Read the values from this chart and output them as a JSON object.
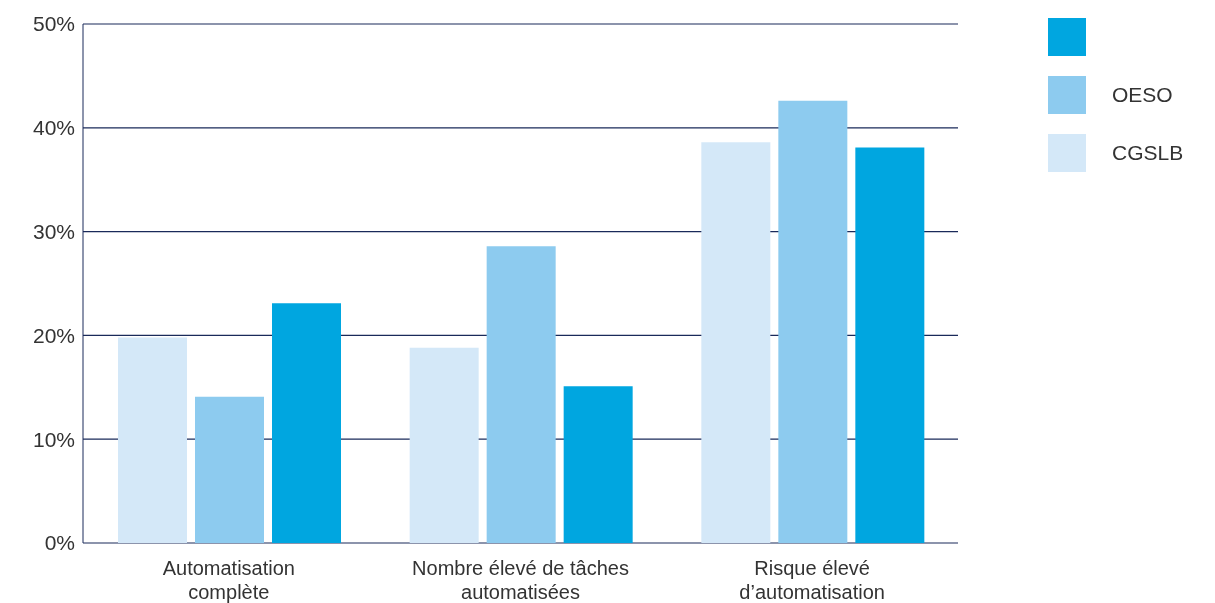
{
  "chart_data": {
    "type": "bar",
    "categories": [
      "Automatisation complète",
      "Nombre élevé de tâches automatisées",
      "Risque élevé d’automatisation"
    ],
    "series": [
      {
        "name": "CGSLB",
        "color": "#d4e8f8",
        "values": [
          19.8,
          18.8,
          38.6
        ]
      },
      {
        "name": "OESO",
        "color": "#8dcbef",
        "values": [
          14.1,
          28.6,
          42.6
        ]
      },
      {
        "color": "#00a6e0",
        "values": [
          23.1,
          15.1,
          38.1
        ]
      }
    ],
    "ylim": [
      0,
      50
    ],
    "yticks": [
      {
        "value": 0,
        "label": "0%"
      },
      {
        "value": 10,
        "label": "10%"
      },
      {
        "value": 20,
        "label": "20%"
      },
      {
        "value": 30,
        "label": "30%"
      },
      {
        "value": 40,
        "label": "40%"
      },
      {
        "value": 50,
        "label": "50%"
      }
    ],
    "grid": "y",
    "legend": "right"
  }
}
